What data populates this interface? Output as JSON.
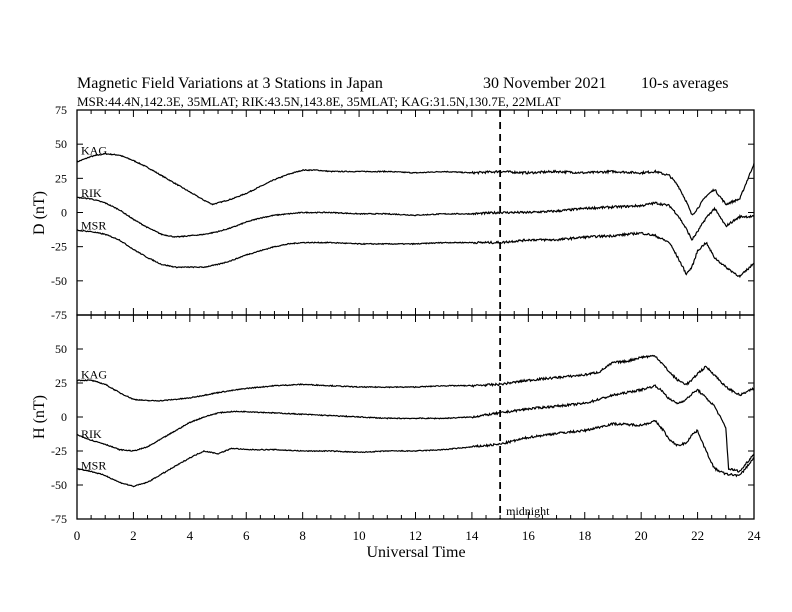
{
  "header": {
    "title": "Magnetic Field Variations at 3 Stations in Japan",
    "date": "30 November 2021",
    "averaging": "10-s averages",
    "stations": "MSR:44.4N,142.3E, 35MLAT;   RIK:43.5N,143.8E, 35MLAT;   KAG:31.5N,130.7E, 22MLAT"
  },
  "chart_data": [
    {
      "type": "line",
      "panel": "D",
      "ylabel": "D (nT)",
      "ylim": [
        -75,
        75
      ],
      "yticks": [
        -75,
        -50,
        -25,
        0,
        25,
        50,
        75
      ],
      "xlim": [
        0,
        24
      ],
      "series": [
        {
          "name": "KAG",
          "x": [
            0,
            0.5,
            1,
            1.5,
            2,
            2.5,
            3,
            3.5,
            4,
            4.5,
            4.8,
            5,
            5.5,
            6,
            6.5,
            7,
            7.5,
            8,
            8.5,
            9,
            10,
            11,
            12,
            13,
            14,
            15,
            16,
            17,
            18,
            19,
            20,
            20.5,
            21,
            21.3,
            21.6,
            21.8,
            22,
            22.3,
            22.6,
            23,
            23.5,
            24
          ],
          "values": [
            37,
            41,
            43,
            42,
            38,
            33,
            27,
            21,
            15,
            9,
            6,
            7,
            10,
            14,
            19,
            24,
            28,
            31,
            31,
            30,
            30,
            30,
            29,
            30,
            29,
            30,
            29,
            30,
            29,
            30,
            29,
            30,
            27,
            20,
            8,
            -2,
            3,
            12,
            17,
            6,
            10,
            36
          ]
        },
        {
          "name": "RIK",
          "x": [
            0,
            0.5,
            1,
            1.5,
            2,
            2.5,
            3,
            3.5,
            4,
            4.5,
            5,
            5.5,
            6,
            6.5,
            7,
            7.5,
            8,
            8.5,
            9,
            10,
            11,
            12,
            13,
            14,
            15,
            16,
            17,
            18,
            19,
            20,
            20.5,
            21,
            21.3,
            21.6,
            21.8,
            22,
            22.3,
            22.6,
            23,
            23.5,
            24
          ],
          "values": [
            11,
            10,
            7,
            2,
            -5,
            -11,
            -16,
            -18,
            -17,
            -16,
            -14,
            -11,
            -7,
            -4,
            -2,
            -1,
            0,
            0,
            0,
            -1,
            -1,
            -2,
            -1,
            -1,
            0,
            0,
            1,
            3,
            4,
            5,
            7,
            5,
            -2,
            -12,
            -20,
            -14,
            -4,
            3,
            -10,
            -3,
            -3
          ]
        },
        {
          "name": "MSR",
          "x": [
            0,
            0.5,
            1,
            1.5,
            2,
            2.5,
            3,
            3.5,
            4,
            4.5,
            5,
            5.5,
            6,
            6.5,
            7,
            7.5,
            8,
            8.5,
            9,
            10,
            11,
            12,
            13,
            14,
            15,
            16,
            17,
            18,
            19,
            20,
            20.5,
            21,
            21.3,
            21.6,
            21.8,
            22,
            22.3,
            22.6,
            23,
            23.5,
            24
          ],
          "values": [
            -13,
            -14,
            -16,
            -20,
            -27,
            -33,
            -38,
            -40,
            -40,
            -40,
            -38,
            -35,
            -31,
            -28,
            -25,
            -23,
            -22,
            -22,
            -22,
            -23,
            -23,
            -23,
            -22,
            -22,
            -22,
            -20,
            -20,
            -18,
            -17,
            -15,
            -17,
            -22,
            -33,
            -45,
            -40,
            -28,
            -22,
            -33,
            -40,
            -47,
            -37
          ]
        }
      ],
      "labels": [
        "KAG",
        "RIK",
        "MSR"
      ]
    },
    {
      "type": "line",
      "panel": "H",
      "ylabel": "H (nT)",
      "ylim": [
        -75,
        75
      ],
      "yticks": [
        -75,
        -50,
        -25,
        0,
        25,
        50,
        75
      ],
      "xlim": [
        0,
        24
      ],
      "xlabel": "Universal Time",
      "xticks": [
        0,
        2,
        4,
        6,
        8,
        10,
        12,
        14,
        16,
        18,
        20,
        22,
        24
      ],
      "series": [
        {
          "name": "KAG",
          "x": [
            0,
            0.5,
            1,
            1.5,
            2,
            2.5,
            3,
            3.5,
            4,
            5,
            6,
            7,
            8,
            9,
            10,
            11,
            12,
            13,
            14,
            15,
            16,
            17,
            18,
            18.5,
            19,
            19.5,
            20,
            20.5,
            20.8,
            21,
            21.3,
            21.6,
            21.8,
            22,
            22.3,
            22.6,
            23,
            23.5,
            24
          ],
          "values": [
            27,
            27,
            24,
            18,
            13,
            12,
            12,
            13,
            14,
            18,
            21,
            23,
            24,
            23,
            22,
            22,
            22,
            23,
            23,
            24,
            27,
            29,
            31,
            33,
            40,
            41,
            44,
            45,
            38,
            33,
            27,
            24,
            27,
            32,
            37,
            31,
            22,
            16,
            21
          ]
        },
        {
          "name": "RIK",
          "x": [
            0,
            0.5,
            1,
            1.5,
            2,
            2.5,
            3,
            3.5,
            4,
            4.5,
            5,
            5.5,
            6,
            7,
            8,
            9,
            10,
            11,
            12,
            13,
            14,
            15,
            16,
            17,
            18,
            19,
            20,
            20.5,
            20.8,
            21,
            21.3,
            21.6,
            21.8,
            22,
            22.3,
            22.6,
            23,
            23.1,
            23.5,
            24
          ],
          "values": [
            -13,
            -17,
            -20,
            -24,
            -25,
            -22,
            -16,
            -10,
            -4,
            0,
            3,
            4,
            4,
            3,
            2,
            1,
            0,
            -1,
            -1,
            -1,
            0,
            3,
            6,
            8,
            10,
            16,
            20,
            23,
            18,
            13,
            10,
            13,
            17,
            20,
            14,
            8,
            -8,
            -38,
            -40,
            -27
          ]
        },
        {
          "name": "MSR",
          "x": [
            0,
            0.5,
            1,
            1.5,
            2,
            2.5,
            3,
            3.5,
            4,
            4.5,
            5,
            5.5,
            6,
            7,
            8,
            9,
            10,
            11,
            12,
            13,
            14,
            15,
            16,
            17,
            18,
            19,
            20,
            20.5,
            20.8,
            21,
            21.3,
            21.6,
            21.8,
            22,
            22.3,
            22.6,
            23,
            23.5,
            24
          ],
          "values": [
            -38,
            -40,
            -43,
            -48,
            -51,
            -48,
            -42,
            -36,
            -30,
            -25,
            -27,
            -23,
            -24,
            -24,
            -25,
            -25,
            -26,
            -25,
            -25,
            -24,
            -22,
            -20,
            -15,
            -12,
            -10,
            -5,
            -6,
            -3,
            -10,
            -17,
            -21,
            -19,
            -13,
            -10,
            -25,
            -38,
            -42,
            -43,
            -30
          ]
        }
      ],
      "labels": [
        "KAG",
        "RIK",
        "MSR"
      ]
    }
  ],
  "marker": {
    "x": 15,
    "label": "midnight"
  }
}
